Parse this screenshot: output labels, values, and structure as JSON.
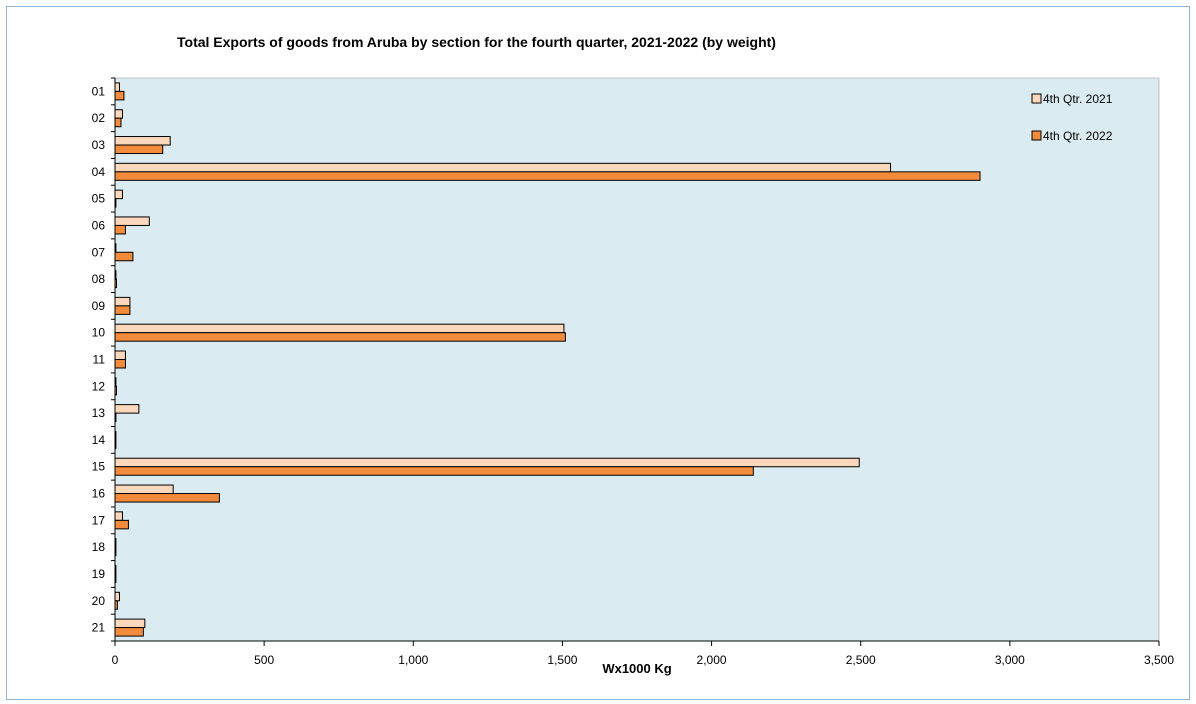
{
  "chart_data": {
    "type": "bar",
    "orientation": "horizontal",
    "title": "Total Exports of goods from Aruba by section for the fourth quarter, 2021-2022 (by weight)",
    "xlabel": "Wx1000 Kg",
    "ylabel": "",
    "xlim": [
      0,
      3500
    ],
    "x_ticks": [
      0,
      500,
      1000,
      1500,
      2000,
      2500,
      3000,
      3500
    ],
    "x_tick_labels": [
      "0",
      "500",
      "1,000",
      "1,500",
      "2,000",
      "2,500",
      "3,000",
      "3,500"
    ],
    "categories": [
      "01",
      "02",
      "03",
      "04",
      "05",
      "06",
      "07",
      "08",
      "09",
      "10",
      "11",
      "12",
      "13",
      "14",
      "15",
      "16",
      "17",
      "18",
      "19",
      "20",
      "21"
    ],
    "series": [
      {
        "name": "4th Qtr. 2021",
        "color": "#fbd7bc",
        "values": [
          15,
          25,
          185,
          2600,
          25,
          115,
          3,
          3,
          50,
          1505,
          35,
          3,
          80,
          3,
          2495,
          195,
          25,
          3,
          3,
          15,
          100
        ]
      },
      {
        "name": "4th Qtr. 2022",
        "color": "#f28c3c",
        "values": [
          30,
          20,
          160,
          2900,
          3,
          35,
          60,
          5,
          50,
          1510,
          35,
          5,
          3,
          3,
          2140,
          350,
          45,
          3,
          3,
          8,
          95
        ]
      }
    ],
    "legend_position": "top-right",
    "grid": false,
    "plot_background": "#daecf2"
  }
}
